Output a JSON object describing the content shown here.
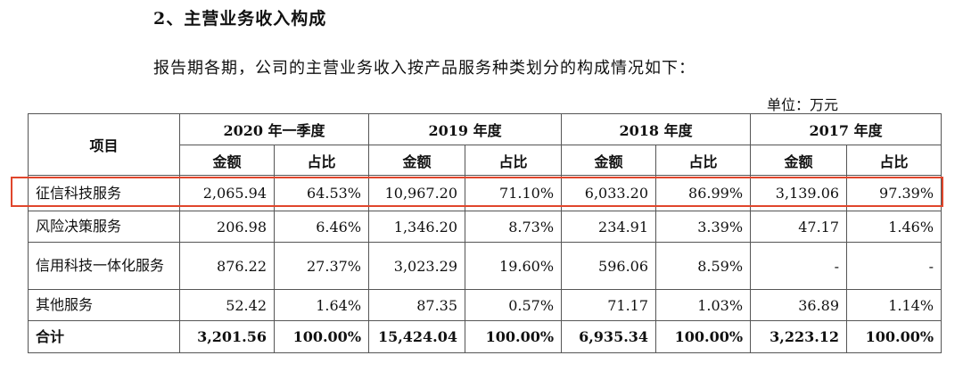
{
  "heading": "2、主营业务收入构成",
  "intro": "报告期各期，公司的主营业务收入按产品服务种类划分的构成情况如下：",
  "unit": "单位：万元",
  "table": {
    "item_header": "项目",
    "periods": [
      "2020 年一季度",
      "2019 年度",
      "2018 年度",
      "2017 年度"
    ],
    "amount_header": "金额",
    "ratio_header": "占比",
    "rows": [
      {
        "name": "征信科技服务",
        "cells": [
          "2,065.94",
          "64.53%",
          "10,967.20",
          "71.10%",
          "6,033.20",
          "86.99%",
          "3,139.06",
          "97.39%"
        ]
      },
      {
        "name": "风险决策服务",
        "cells": [
          "206.98",
          "6.46%",
          "1,346.20",
          "8.73%",
          "234.91",
          "3.39%",
          "47.17",
          "1.46%"
        ]
      },
      {
        "name": "信用科技一体化服务",
        "cells": [
          "876.22",
          "27.37%",
          "3,023.29",
          "19.60%",
          "596.06",
          "8.59%",
          "-",
          "-"
        ]
      },
      {
        "name": "其他服务",
        "cells": [
          "52.42",
          "1.64%",
          "87.35",
          "0.57%",
          "71.17",
          "1.03%",
          "36.89",
          "1.14%"
        ]
      }
    ],
    "total": {
      "name": "合计",
      "cells": [
        "3,201.56",
        "100.00%",
        "15,424.04",
        "100.00%",
        "6,935.34",
        "100.00%",
        "3,223.12",
        "100.00%"
      ]
    }
  },
  "highlight_color": "#e0462c"
}
